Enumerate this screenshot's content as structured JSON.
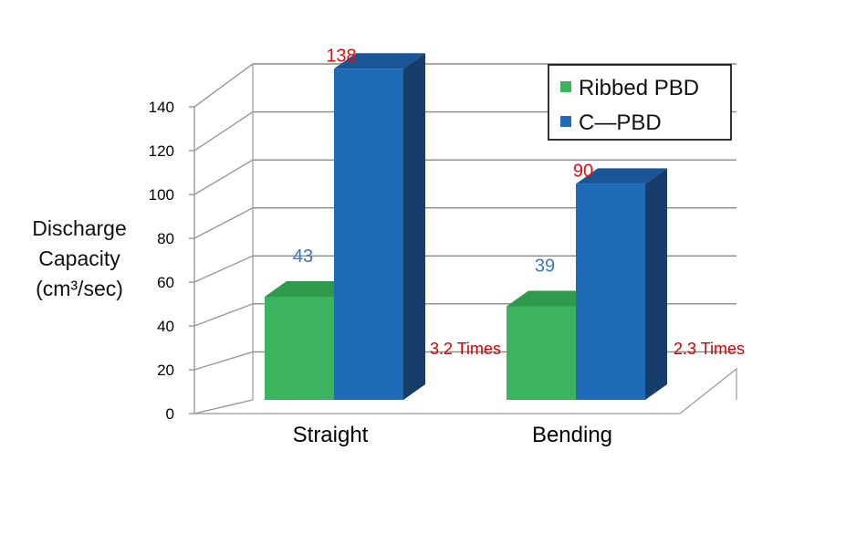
{
  "chart_data": {
    "type": "bar",
    "categories": [
      "Straight",
      "Bending"
    ],
    "series": [
      {
        "name": "Ribbed PBD",
        "values": [
          43,
          39
        ],
        "color": "#3cb35e",
        "top_color": "#2e9a4b",
        "label_color": "#3f76c0"
      },
      {
        "name": "C—PBD",
        "values": [
          138,
          90
        ],
        "color": "#1f6bb8",
        "top_color": "#1a5596",
        "side_color": "#173d6b",
        "label_color": "#e01010"
      }
    ],
    "ylim": [
      0,
      140
    ],
    "yticks": [
      "0",
      "20",
      "40",
      "60",
      "80",
      "100",
      "120",
      "140"
    ],
    "ylabel_lines": [
      "Discharge",
      "Capacity",
      "(cm³/sec)"
    ],
    "annotations": [
      "3.2 Times",
      "2.3 Times"
    ],
    "legend_position": "top-right",
    "grid": true
  }
}
